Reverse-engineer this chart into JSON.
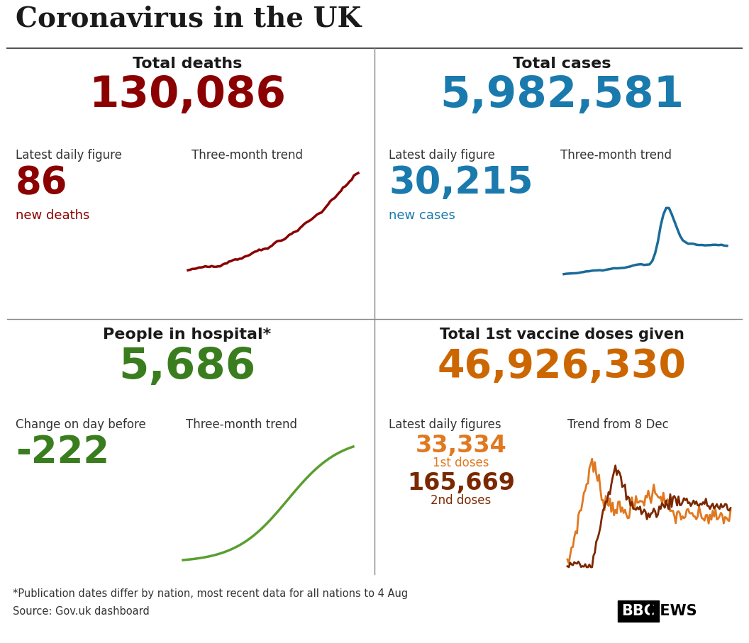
{
  "title": "Coronavirus in the UK",
  "bg_color": "#ffffff",
  "title_color": "#1a1a1a",
  "divider_color": "#555555",
  "total_deaths_label": "Total deaths",
  "total_deaths_value": "130,086",
  "total_deaths_color": "#8b0000",
  "deaths_daily_label": "Latest daily figure",
  "deaths_trend_label": "Three-month trend",
  "deaths_daily_value": "86",
  "deaths_daily_sublabel": "new deaths",
  "deaths_trend_color": "#8b0000",
  "total_cases_label": "Total cases",
  "total_cases_value": "5,982,581",
  "total_cases_color": "#1a7aad",
  "cases_daily_label": "Latest daily figure",
  "cases_trend_label": "Three-month trend",
  "cases_daily_value": "30,215",
  "cases_daily_sublabel": "new cases",
  "cases_trend_color": "#1a6b99",
  "hospital_label": "People in hospital*",
  "hospital_value": "5,686",
  "hospital_color": "#3a7d1e",
  "hospital_change_label": "Change on day before",
  "hospital_trend_label": "Three-month trend",
  "hospital_change_value": "-222",
  "hospital_change_color": "#3a7d1e",
  "hospital_trend_color": "#5a9e2f",
  "vaccine_label": "Total 1st vaccine doses given",
  "vaccine_value": "46,926,330",
  "vaccine_color": "#cc6600",
  "vaccine_daily_label": "Latest daily figures",
  "vaccine_trend_label": "Trend from 8 Dec",
  "vaccine_1st_value": "33,334",
  "vaccine_1st_sublabel": "1st doses",
  "vaccine_1st_color": "#e07820",
  "vaccine_2nd_value": "165,669",
  "vaccine_2nd_sublabel": "2nd doses",
  "vaccine_2nd_color": "#7a2800",
  "footnote": "*Publication dates differ by nation, most recent data for all nations to 4 Aug",
  "source": "Source: Gov.uk dashboard",
  "label_color": "#333333"
}
